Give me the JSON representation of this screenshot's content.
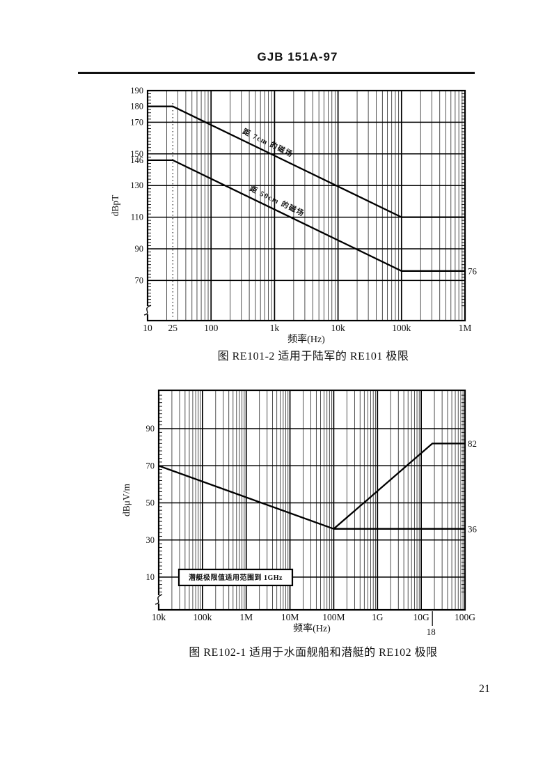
{
  "page": {
    "header_title": "GJB 151A-97",
    "page_number": "21"
  },
  "chart_data": [
    {
      "id": "re101",
      "type": "line",
      "caption": "图 RE101-2  适用于陆军的 RE101 极限",
      "xlabel": "频率(Hz)",
      "ylabel": "dBpT",
      "x_scale": "log",
      "xlim": [
        10,
        1000000
      ],
      "ylim_labeled": [
        70,
        190
      ],
      "grid": "log-dense",
      "x_ticks": [
        {
          "f": 10,
          "label": "10"
        },
        {
          "f": 25,
          "label": "25"
        },
        {
          "f": 100,
          "label": "100"
        },
        {
          "f": 1000,
          "label": "1k"
        },
        {
          "f": 10000,
          "label": "10k"
        },
        {
          "f": 100000,
          "label": "100k"
        },
        {
          "f": 1000000,
          "label": "1M"
        }
      ],
      "y_tick_labels": [
        {
          "v": 190,
          "label": "190"
        },
        {
          "v": 180,
          "label": "180"
        },
        {
          "v": 170,
          "label": "170"
        },
        {
          "v": 150,
          "label": "150"
        },
        {
          "v": 146,
          "label": "146"
        },
        {
          "v": 130,
          "label": "130"
        },
        {
          "v": 110,
          "label": "110"
        },
        {
          "v": 90,
          "label": "90"
        },
        {
          "v": 70,
          "label": "70"
        }
      ],
      "y_gridlines": [
        170,
        150,
        130,
        110,
        90,
        70
      ],
      "dotted_vline_hz": 25,
      "axis_break": "bottom-left",
      "series": [
        {
          "name": "距 7cm 的磁场",
          "points": [
            [
              10,
              180
            ],
            [
              25,
              180
            ],
            [
              100000,
              110
            ],
            [
              1000000,
              110
            ]
          ],
          "label_frac": 0.4
        },
        {
          "name": "距 50cm 的磁场",
          "points": [
            [
              10,
              146
            ],
            [
              25,
              146
            ],
            [
              100000,
              76
            ],
            [
              1000000,
              76
            ]
          ],
          "label_frac": 0.44
        }
      ],
      "right_edge_annotations": [
        {
          "v": 76,
          "label": "76"
        }
      ]
    },
    {
      "id": "re102",
      "type": "line",
      "caption": "图 RE102-1  适用于水面舰船和潜艇的 RE102 极限",
      "xlabel": "频率(Hz)",
      "ylabel": "dBμV/m",
      "x_scale": "log",
      "xlim": [
        10000,
        100000000000
      ],
      "ylim_labeled": [
        10,
        90
      ],
      "grid": "log-dense",
      "x_ticks": [
        {
          "f": 10000,
          "label": "10k"
        },
        {
          "f": 100000,
          "label": "100k"
        },
        {
          "f": 1000000,
          "label": "1M"
        },
        {
          "f": 10000000,
          "label": "10M"
        },
        {
          "f": 100000000,
          "label": "100M"
        },
        {
          "f": 1000000000,
          "label": "1G"
        },
        {
          "f": 10000000000,
          "label": "10G"
        },
        {
          "f": 100000000000,
          "label": "100G"
        }
      ],
      "y_tick_labels": [
        {
          "v": 90,
          "label": "90"
        },
        {
          "v": 70,
          "label": "70"
        },
        {
          "v": 50,
          "label": "50"
        },
        {
          "v": 30,
          "label": "30"
        },
        {
          "v": 10,
          "label": "10"
        }
      ],
      "y_gridlines": [
        90,
        70,
        50,
        30,
        10
      ],
      "axis_break": "bottom-left",
      "series": [
        {
          "name": "",
          "points": [
            [
              10000,
              70
            ],
            [
              100000000,
              36
            ],
            [
              18000000000,
              82
            ],
            [
              100000000000,
              82
            ]
          ]
        },
        {
          "name": "",
          "points": [
            [
              100000000,
              36
            ],
            [
              100000000000,
              36
            ]
          ]
        }
      ],
      "right_edge_annotations": [
        {
          "v": 82,
          "label": "82"
        },
        {
          "v": 36,
          "label": "36"
        }
      ],
      "below_axis_annotations": [
        {
          "f": 18000000000,
          "label": "18"
        }
      ],
      "note_box": {
        "text": "潜艇极限值适用范围到 1GHz"
      }
    }
  ]
}
